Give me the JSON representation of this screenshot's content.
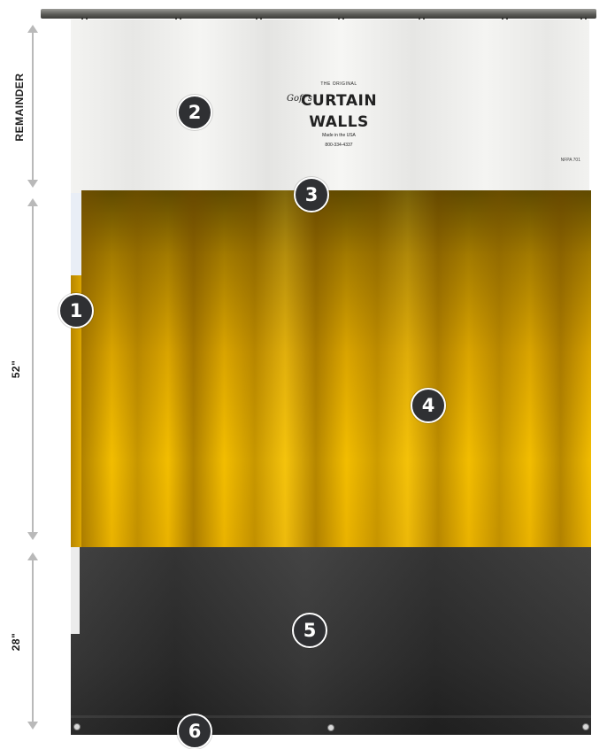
{
  "dimensions": {
    "top_label": "REMAINDER",
    "middle_label": "52\"",
    "bottom_label": "28\""
  },
  "logo": {
    "top_line": "THE ORIGINAL",
    "script": "Goff's",
    "line1": "CURTAIN",
    "line2": "WALLS",
    "made_in": "Made in the USA",
    "phone": "800-334-4337"
  },
  "tag": {
    "text": "NFPA 701"
  },
  "markers": [
    "1",
    "2",
    "3",
    "4",
    "5",
    "6"
  ],
  "colors": {
    "white_panel": "#f0f0ee",
    "yellow_panel": "#f2bd00",
    "black_panel": "#2e2e2e",
    "marker_fill": "#2f3033",
    "arrow": "#b9b9b9"
  }
}
